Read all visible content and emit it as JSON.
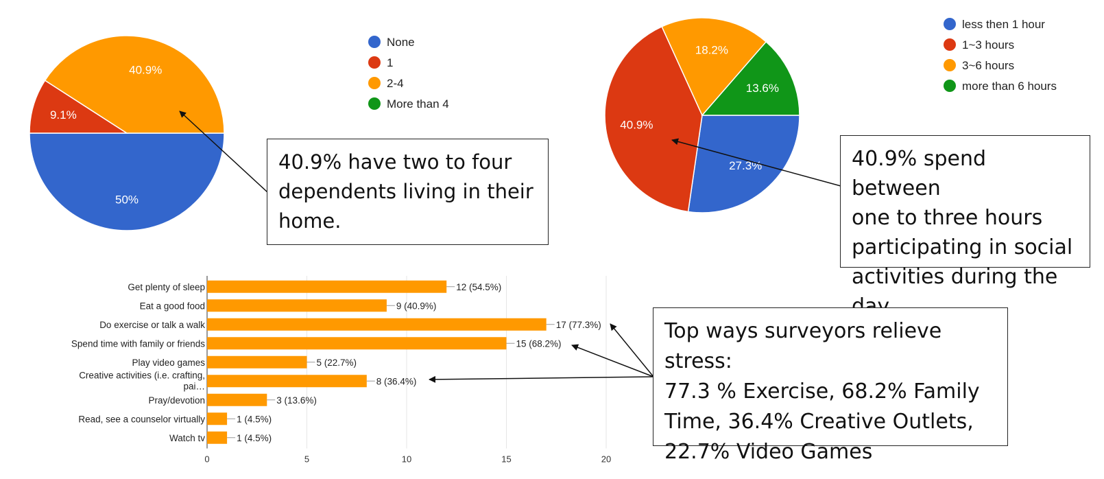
{
  "chart_data": [
    {
      "type": "pie",
      "slices": [
        {
          "label": "None",
          "value": 50,
          "display": "50%",
          "color": "#3366cc"
        },
        {
          "label": "1",
          "value": 9.1,
          "display": "9.1%",
          "color": "#dc3912"
        },
        {
          "label": "2-4",
          "value": 40.9,
          "display": "40.9%",
          "color": "#ff9900"
        },
        {
          "label": "More than 4",
          "value": 0,
          "display": "",
          "color": "#109618"
        }
      ],
      "legend_position": "right"
    },
    {
      "type": "pie",
      "slices": [
        {
          "label": "less then 1 hour",
          "value": 27.3,
          "display": "27.3%",
          "color": "#3366cc"
        },
        {
          "label": "1~3 hours",
          "value": 40.9,
          "display": "40.9%",
          "color": "#dc3912"
        },
        {
          "label": "3~6 hours",
          "value": 18.2,
          "display": "18.2%",
          "color": "#ff9900"
        },
        {
          "label": "more than 6 hours",
          "value": 13.6,
          "display": "13.6%",
          "color": "#109618"
        }
      ],
      "legend_position": "top-right"
    },
    {
      "type": "bar",
      "orientation": "horizontal",
      "categories": [
        "Get plenty of sleep",
        "Eat a good food",
        "Do exercise or talk a walk",
        "Spend time with family or friends",
        "Play video games",
        "Creative activities (i.e. crafting, pai…",
        "Pray/devotion",
        "Read, see a counselor virtually",
        "Watch tv"
      ],
      "values": [
        12,
        9,
        17,
        15,
        5,
        8,
        3,
        1,
        1
      ],
      "data_labels": [
        "12 (54.5%)",
        "9 (40.9%)",
        "17 (77.3%)",
        "15 (68.2%)",
        "5 (22.7%)",
        "8 (36.4%)",
        "3 (13.6%)",
        "1 (4.5%)",
        "1 (4.5%)"
      ],
      "xticks": [
        "0",
        "5",
        "10",
        "15",
        "20"
      ],
      "xlim": [
        0,
        20
      ],
      "grid": true,
      "color": "#ff9900"
    }
  ],
  "callouts": {
    "dependents": [
      "40.9% have two to four",
      "dependents living in their",
      "home."
    ],
    "social": [
      "40.9% spend between",
      "one to three hours",
      "participating in social",
      "activities during the day"
    ],
    "stress": [
      "Top ways surveyors  relieve stress:",
      "77.3 % Exercise, 68.2% Family",
      "Time, 36.4% Creative Outlets,",
      "22.7% Video Games"
    ]
  }
}
